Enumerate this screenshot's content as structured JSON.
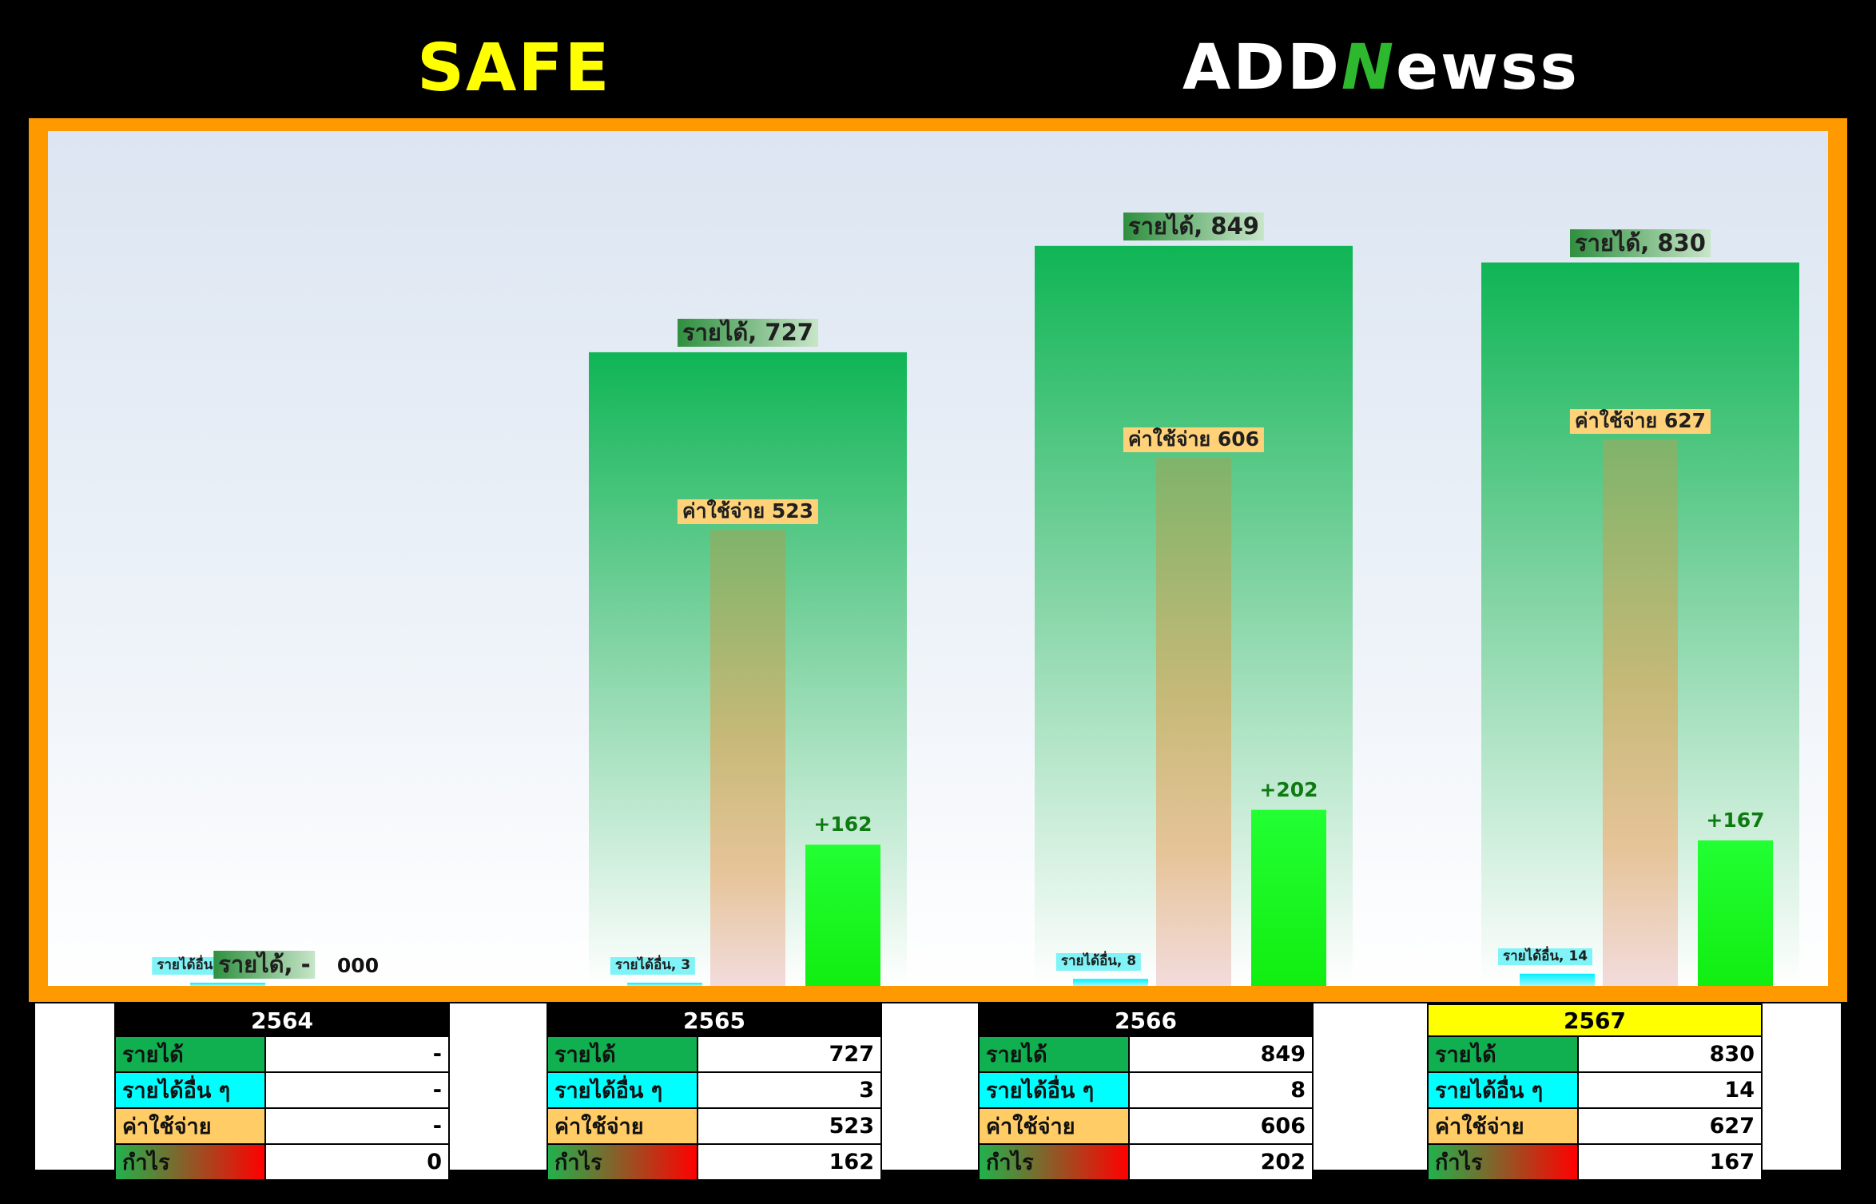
{
  "header": {
    "left_title": "SAFE",
    "logo_text": "ADDNewss"
  },
  "colors": {
    "revenue": "#10b050",
    "other_income": "#00ffff",
    "expense": "#ffcc66",
    "profit": "#22ff22",
    "highlight_year": "#ffff00",
    "frame": "#ff9900"
  },
  "chart_data": {
    "type": "bar",
    "categories": [
      "2564",
      "2565",
      "2566",
      "2567"
    ],
    "series": [
      {
        "name": "รายได้",
        "values": [
          0,
          727,
          849,
          830
        ]
      },
      {
        "name": "รายได้อื่น",
        "values": [
          0,
          3,
          8,
          14
        ]
      },
      {
        "name": "ค่าใช้จ่าย",
        "values": [
          0,
          523,
          606,
          627
        ]
      },
      {
        "name": "กำไร",
        "values": [
          0,
          162,
          202,
          167
        ]
      }
    ],
    "data_labels": {
      "revenue": [
        "รายได้, -",
        "รายได้, 727",
        "รายได้, 849",
        "รายได้, 830"
      ],
      "other_income": [
        "รายได้อื่น, -",
        "รายได้อื่น, 3",
        "รายได้อื่น, 8",
        "รายได้อื่น, 14"
      ],
      "expense": [
        "",
        "ค่าใช้จ่าย 523",
        "ค่าใช้จ่าย 606",
        "ค่าใช้จ่าย 627"
      ],
      "profit": [
        "000",
        "+162",
        "+202",
        "+167"
      ]
    },
    "ylim": [
      0,
      880
    ],
    "grid": false,
    "legend": "none"
  },
  "tables": [
    {
      "year": "2564",
      "highlight": false,
      "rows": [
        {
          "label": "รายได้",
          "value": "-"
        },
        {
          "label": "รายได้อื่น ๆ",
          "value": "-"
        },
        {
          "label": "ค่าใช้จ่าย",
          "value": "-"
        },
        {
          "label": "กำไร",
          "value": "0"
        }
      ]
    },
    {
      "year": "2565",
      "highlight": false,
      "rows": [
        {
          "label": "รายได้",
          "value": "727"
        },
        {
          "label": "รายได้อื่น ๆ",
          "value": "3"
        },
        {
          "label": "ค่าใช้จ่าย",
          "value": "523"
        },
        {
          "label": "กำไร",
          "value": "162"
        }
      ]
    },
    {
      "year": "2566",
      "highlight": false,
      "rows": [
        {
          "label": "รายได้",
          "value": "849"
        },
        {
          "label": "รายได้อื่น ๆ",
          "value": "8"
        },
        {
          "label": "ค่าใช้จ่าย",
          "value": "606"
        },
        {
          "label": "กำไร",
          "value": "202"
        }
      ]
    },
    {
      "year": "2567",
      "highlight": true,
      "rows": [
        {
          "label": "รายได้",
          "value": "830"
        },
        {
          "label": "รายได้อื่น ๆ",
          "value": "14"
        },
        {
          "label": "ค่าใช้จ่าย",
          "value": "627"
        },
        {
          "label": "กำไร",
          "value": "167"
        }
      ]
    }
  ]
}
